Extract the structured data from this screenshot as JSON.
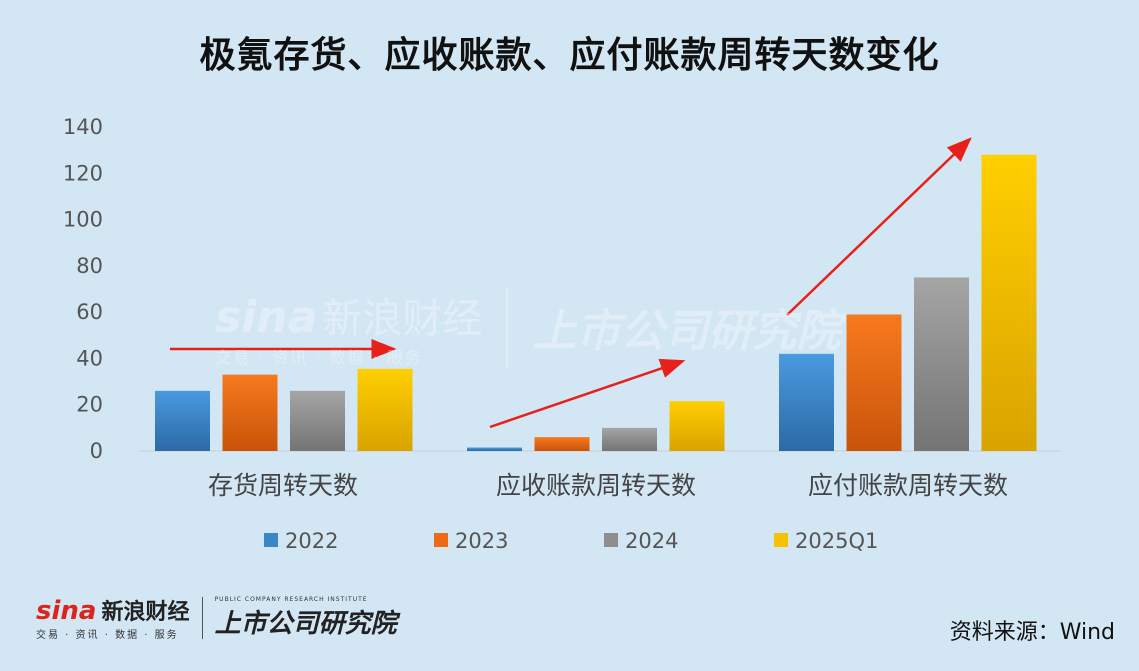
{
  "title": "极氪存货、应收账款、应付账款周转天数变化",
  "chart_data": {
    "type": "bar",
    "title": "极氪存货、应收账款、应付账款周转天数变化",
    "categories": [
      "存货周转天数",
      "应收账款周转天数",
      "应付账款周转天数"
    ],
    "series": [
      {
        "name": "2022",
        "values": [
          26,
          1.5,
          42
        ],
        "color": "#3b86c8"
      },
      {
        "name": "2023",
        "values": [
          33,
          6,
          59
        ],
        "color": "#ec6b15"
      },
      {
        "name": "2024",
        "values": [
          26,
          10,
          75
        ],
        "color": "#8e8e8e"
      },
      {
        "name": "2025Q1",
        "values": [
          35.5,
          21.5,
          128
        ],
        "color": "#f5c100"
      }
    ],
    "yticks": [
      0,
      20,
      40,
      60,
      80,
      100,
      120,
      140
    ],
    "ylim": [
      0,
      140
    ],
    "legend_position": "bottom",
    "grid": false
  },
  "watermark": {
    "brand": "sina",
    "brand_cn": "新浪财经",
    "brand_sub": "交易 · 资讯 · 数据 · 服务",
    "institute": "上市公司研究院"
  },
  "footer": {
    "brand": "sina",
    "brand_cn": "新浪财经",
    "brand_sub": "交易 · 资讯 · 数据 · 服务",
    "institute": "上市公司研究院",
    "institute_en": "PUBLIC COMPANY RESEARCH INSTITUTE",
    "source": "资料来源：Wind"
  }
}
